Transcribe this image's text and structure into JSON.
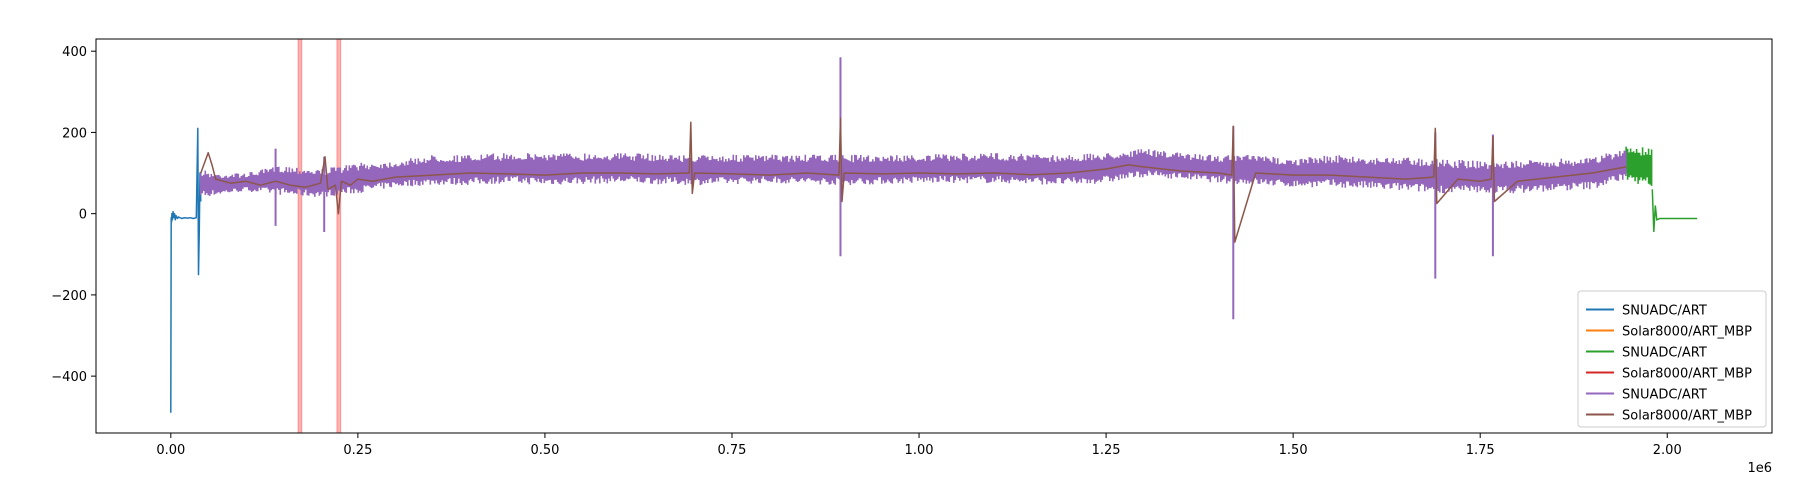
{
  "chart_data": {
    "type": "line",
    "title": "",
    "xlabel": "",
    "ylabel": "",
    "x_offset_label": "1e6",
    "xlim": [
      -100000,
      2140000
    ],
    "ylim": [
      -540,
      430
    ],
    "x_ticks": [
      0,
      250000,
      500000,
      750000,
      1000000,
      1250000,
      1500000,
      1750000,
      2000000
    ],
    "x_tick_labels": [
      "0.00",
      "0.25",
      "0.50",
      "0.75",
      "1.00",
      "1.25",
      "1.50",
      "1.75",
      "2.00"
    ],
    "y_ticks": [
      -400,
      -200,
      0,
      200,
      400
    ],
    "y_tick_labels": [
      "−400",
      "−200",
      "0",
      "200",
      "400"
    ],
    "grid": false,
    "legend_position": "lower-right",
    "highlight_spans": [
      {
        "x0": 170000,
        "x1": 175000,
        "color": "#ff0000"
      },
      {
        "x0": 222000,
        "x1": 227000,
        "color": "#ff0000"
      }
    ],
    "series": [
      {
        "name": "SNUADC/ART",
        "color": "#1f77b4",
        "style": "line",
        "x": [
          0,
          500,
          1000,
          1500,
          2000,
          2500,
          3000,
          4000,
          5000,
          6000,
          7000,
          8000,
          9000,
          10000,
          12000,
          15000,
          18000,
          22000,
          26000,
          30000,
          34000,
          36000,
          37000,
          38000,
          39000,
          40000
        ],
        "y": [
          -490,
          -10,
          -20,
          0,
          -15,
          -5,
          5,
          -10,
          0,
          -15,
          -5,
          -10,
          -12,
          -8,
          -10,
          -12,
          -10,
          -11,
          -10,
          -12,
          -10,
          210,
          -150,
          -40,
          100,
          30
        ]
      },
      {
        "name": "Solar8000/ART_MBP",
        "color": "#ff7f0e",
        "style": "line",
        "x": [],
        "y": []
      },
      {
        "name": "SNUADC/ART",
        "color": "#2ca02c",
        "style": "band",
        "x": [
          1945000,
          1955000,
          1965000,
          1975000,
          1980000
        ],
        "y_low": [
          80,
          75,
          70,
          65,
          60
        ],
        "y_high": [
          165,
          170,
          165,
          170,
          160
        ],
        "tail_x": [
          1980000,
          1982000,
          1984000,
          1986000,
          1990000,
          2000000,
          2020000,
          2040000
        ],
        "tail_y": [
          60,
          -45,
          20,
          -15,
          -12,
          -12,
          -12,
          -12
        ]
      },
      {
        "name": "Solar8000/ART_MBP",
        "color": "#d62728",
        "style": "line",
        "x": [],
        "y": []
      },
      {
        "name": "SNUADC/ART",
        "color": "#9467bd",
        "style": "band",
        "x": [
          40000,
          60000,
          100000,
          150000,
          200000,
          250000,
          300000,
          350000,
          400000,
          450000,
          500000,
          600000,
          700000,
          800000,
          900000,
          1000000,
          1100000,
          1200000,
          1250000,
          1300000,
          1350000,
          1400000,
          1450000,
          1500000,
          1550000,
          1600000,
          1650000,
          1700000,
          1750000,
          1800000,
          1850000,
          1900000,
          1945000
        ],
        "y_low": [
          40,
          45,
          55,
          45,
          40,
          50,
          65,
          70,
          70,
          75,
          70,
          75,
          70,
          75,
          70,
          75,
          75,
          70,
          75,
          90,
          85,
          75,
          70,
          65,
          65,
          60,
          55,
          50,
          50,
          50,
          55,
          60,
          85
        ],
        "y_high": [
          110,
          100,
          100,
          120,
          110,
          125,
          130,
          145,
          145,
          150,
          150,
          150,
          145,
          145,
          145,
          145,
          150,
          145,
          150,
          160,
          150,
          145,
          145,
          135,
          145,
          140,
          140,
          135,
          130,
          130,
          135,
          140,
          160
        ],
        "spikes": [
          {
            "x": 140000,
            "y_low": -30,
            "y_high": 160
          },
          {
            "x": 205000,
            "y_low": -45,
            "y_high": 140
          },
          {
            "x": 895000,
            "y_low": -105,
            "y_high": 385
          },
          {
            "x": 1420000,
            "y_low": -260,
            "y_high": 215
          },
          {
            "x": 1690000,
            "y_low": -160,
            "y_high": 200
          },
          {
            "x": 1767000,
            "y_low": -105,
            "y_high": 195
          }
        ]
      },
      {
        "name": "Solar8000/ART_MBP",
        "color": "#8c564b",
        "style": "line",
        "x": [
          40000,
          50000,
          55000,
          60000,
          80000,
          100000,
          120000,
          140000,
          160000,
          180000,
          200000,
          206000,
          210000,
          220000,
          224000,
          228000,
          240000,
          250000,
          270000,
          300000,
          350000,
          400000,
          450000,
          500000,
          550000,
          600000,
          650000,
          693000,
          695000,
          697000,
          700000,
          750000,
          800000,
          850000,
          893000,
          895000,
          897000,
          900000,
          950000,
          1000000,
          1050000,
          1100000,
          1150000,
          1200000,
          1250000,
          1280000,
          1300000,
          1350000,
          1400000,
          1418000,
          1420000,
          1422000,
          1450000,
          1500000,
          1550000,
          1600000,
          1650000,
          1688000,
          1690000,
          1692000,
          1720000,
          1750000,
          1765000,
          1767000,
          1769000,
          1800000,
          1850000,
          1900000,
          1945000
        ],
        "y": [
          100,
          150,
          120,
          85,
          75,
          80,
          70,
          80,
          70,
          65,
          75,
          140,
          60,
          70,
          0,
          80,
          70,
          85,
          80,
          90,
          95,
          100,
          98,
          95,
          100,
          100,
          98,
          100,
          225,
          50,
          100,
          98,
          95,
          100,
          95,
          235,
          30,
          100,
          98,
          100,
          98,
          100,
          96,
          100,
          110,
          120,
          115,
          105,
          100,
          95,
          215,
          -70,
          100,
          95,
          95,
          90,
          85,
          90,
          210,
          25,
          85,
          80,
          85,
          190,
          30,
          80,
          90,
          100,
          115
        ]
      }
    ]
  }
}
